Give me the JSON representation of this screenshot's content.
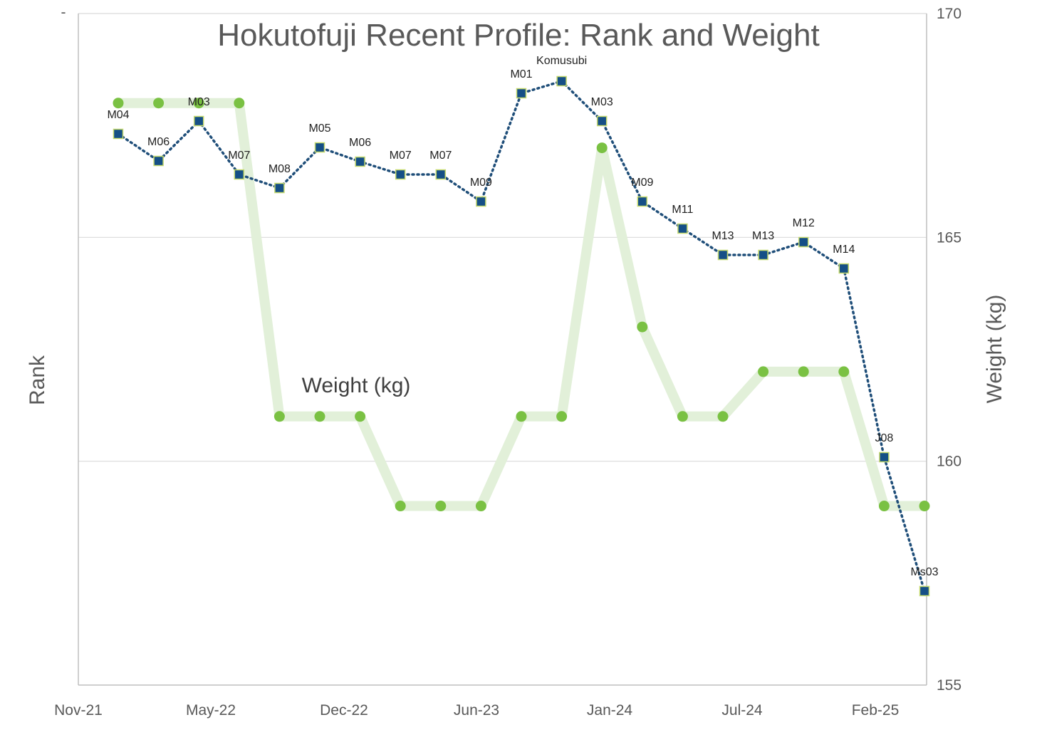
{
  "chart_data": {
    "type": "line",
    "title": "Hokutofuji Recent Profile: Rank and Weight",
    "ylabel_left": "Rank",
    "ylabel_right": "Weight (kg)",
    "y_left_top_tick": "-",
    "x_tick_labels": [
      "Nov-21",
      "May-22",
      "Dec-22",
      "Jun-23",
      "Jan-24",
      "Jul-24",
      "Feb-25"
    ],
    "y_right_ticks": [
      155,
      160,
      165,
      170
    ],
    "y_right_range": [
      155,
      170
    ],
    "x": [
      "Jan-22",
      "Mar-22",
      "May-22",
      "Jul-22",
      "Sep-22",
      "Nov-22",
      "Jan-23",
      "Mar-23",
      "May-23",
      "Jul-23",
      "Sep-23",
      "Nov-23",
      "Jan-24",
      "Mar-24",
      "May-24",
      "Jul-24",
      "Sep-24",
      "Nov-24",
      "Jan-25",
      "Mar-25",
      "May-25"
    ],
    "series": [
      {
        "name": "Weight (kg)",
        "axis": "right",
        "color": "#7ac143",
        "line_color": "#e2f0d9",
        "values": [
          168,
          168,
          168,
          168,
          161,
          161,
          161,
          159,
          159,
          159,
          161,
          161,
          167,
          163,
          161,
          161,
          162,
          162,
          162,
          159,
          159
        ]
      },
      {
        "axis": "left",
        "color": "#1f4e79",
        "marker_color": "#154f86",
        "marker_edge": "#c5d96d",
        "line_style": "dotted",
        "labels": [
          "M04",
          "M06",
          "M03",
          "M07",
          "M08",
          "M05",
          "M06",
          "M07",
          "M07",
          "M09",
          "M01",
          "Komusubi",
          "M03",
          "M09",
          "M11",
          "M13",
          "M13",
          "M12",
          "M14",
          "J08",
          "Ms03"
        ]
      }
    ],
    "grid": true,
    "legend": "none"
  }
}
